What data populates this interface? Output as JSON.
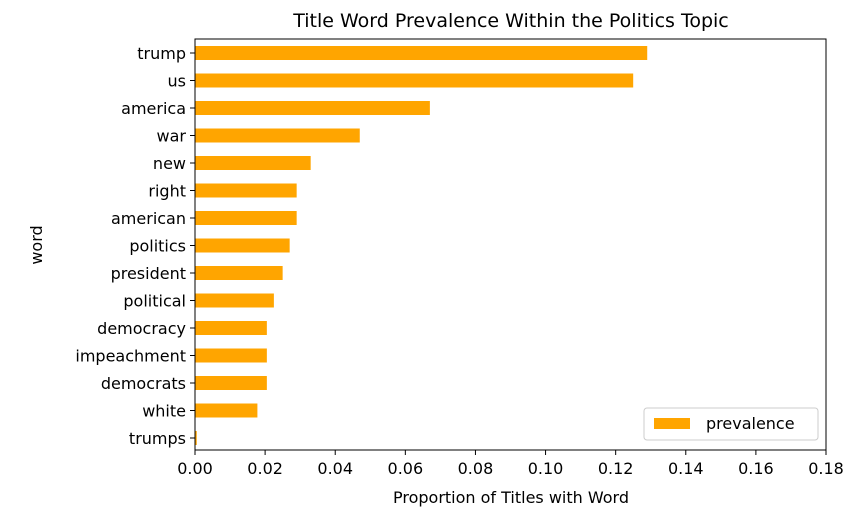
{
  "chart_data": {
    "type": "bar",
    "orientation": "horizontal",
    "title": "Title Word Prevalence Within the Politics Topic",
    "xlabel": "Proportion of Titles with Word",
    "ylabel": "word",
    "xlim": [
      0,
      0.18
    ],
    "xticks": [
      "0.00",
      "0.02",
      "0.04",
      "0.06",
      "0.08",
      "0.10",
      "0.12",
      "0.14",
      "0.16",
      "0.18"
    ],
    "grid": false,
    "legend": {
      "placement": "lower-right"
    },
    "categories": [
      "trump",
      "us",
      "america",
      "war",
      "new",
      "right",
      "american",
      "politics",
      "president",
      "political",
      "democracy",
      "impeachment",
      "democrats",
      "white",
      "trumps"
    ],
    "series": [
      {
        "name": "prevalence",
        "color": "#ffa500",
        "values": [
          0.129,
          0.125,
          0.067,
          0.047,
          0.033,
          0.029,
          0.029,
          0.027,
          0.025,
          0.0225,
          0.0205,
          0.0205,
          0.0205,
          0.0178,
          0.0005
        ]
      }
    ]
  }
}
